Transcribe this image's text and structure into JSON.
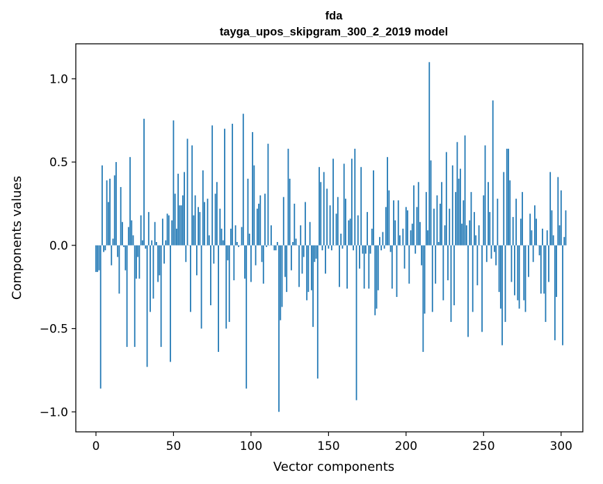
{
  "chart_data": {
    "type": "bar",
    "title": "fda",
    "subtitle": "tayga_upos_skipgram_300_2_2019 model",
    "xlabel": "Vector components",
    "ylabel": "Components values",
    "xlim": [
      -13,
      314
    ],
    "ylim": [
      -1.12,
      1.21
    ],
    "x_ticks": [
      {
        "value": 0,
        "label": "0"
      },
      {
        "value": 50,
        "label": "50"
      },
      {
        "value": 100,
        "label": "100"
      },
      {
        "value": 150,
        "label": "150"
      },
      {
        "value": 200,
        "label": "200"
      },
      {
        "value": 250,
        "label": "250"
      },
      {
        "value": 300,
        "label": "300"
      }
    ],
    "y_ticks": [
      {
        "value": -1.0,
        "label": "−1.0"
      },
      {
        "value": -0.5,
        "label": "−0.5"
      },
      {
        "value": 0.0,
        "label": "0.0"
      },
      {
        "value": 0.5,
        "label": "0.5"
      },
      {
        "value": 1.0,
        "label": "1.0"
      }
    ],
    "bar_color": "#1f77b4",
    "grid": false,
    "values": [
      -0.16,
      -0.16,
      -0.15,
      -0.86,
      0.48,
      -0.04,
      -0.03,
      0.39,
      0.26,
      0.4,
      -0.12,
      0.04,
      0.42,
      0.5,
      -0.07,
      -0.29,
      0.35,
      0.14,
      -0.01,
      -0.15,
      -0.61,
      0.11,
      0.53,
      0.15,
      0.06,
      -0.61,
      -0.2,
      -0.07,
      -0.2,
      0.18,
      0.03,
      0.76,
      -0.02,
      -0.73,
      0.2,
      -0.4,
      0.03,
      -0.32,
      0.14,
      0.02,
      -0.22,
      -0.18,
      -0.61,
      0.16,
      -0.11,
      0.03,
      0.19,
      0.18,
      -0.7,
      0.15,
      0.75,
      0.31,
      0.1,
      0.43,
      0.24,
      0.24,
      0.3,
      0.44,
      -0.1,
      0.64,
      0.0,
      -0.4,
      0.6,
      0.18,
      0.3,
      -0.18,
      0.23,
      0.2,
      -0.5,
      0.45,
      0.26,
      0.0,
      0.28,
      0.06,
      -0.36,
      0.72,
      -0.11,
      0.31,
      0.38,
      -0.64,
      0.22,
      0.1,
      0.03,
      0.7,
      -0.5,
      -0.09,
      -0.46,
      0.1,
      0.73,
      -0.21,
      0.12,
      0.02,
      -0.01,
      0.0,
      0.11,
      0.79,
      -0.2,
      -0.86,
      0.4,
      0.07,
      -0.22,
      0.68,
      0.48,
      -0.12,
      0.22,
      0.25,
      0.3,
      -0.1,
      -0.23,
      0.31,
      -0.01,
      0.61,
      0.0,
      0.12,
      0.0,
      -0.03,
      -0.03,
      0.02,
      -1.0,
      -0.45,
      -0.37,
      0.29,
      -0.19,
      -0.28,
      0.58,
      0.4,
      -0.15,
      0.02,
      0.25,
      0.04,
      0.0,
      -0.25,
      0.12,
      -0.17,
      -0.07,
      0.26,
      -0.33,
      -0.28,
      0.14,
      -0.27,
      -0.49,
      -0.1,
      -0.08,
      -0.8,
      0.47,
      0.38,
      -0.03,
      0.44,
      -0.17,
      0.34,
      -0.02,
      0.24,
      -0.03,
      0.52,
      0.0,
      0.19,
      0.29,
      -0.25,
      0.07,
      -0.02,
      0.49,
      0.28,
      -0.26,
      0.15,
      0.16,
      0.52,
      -0.03,
      0.58,
      -0.93,
      0.18,
      -0.14,
      0.47,
      -0.05,
      -0.26,
      -0.05,
      0.2,
      -0.26,
      -0.05,
      0.1,
      0.45,
      -0.42,
      -0.38,
      -0.27,
      0.05,
      -0.03,
      0.08,
      -0.02,
      0.23,
      0.53,
      0.33,
      -0.04,
      -0.26,
      0.27,
      0.15,
      -0.31,
      0.27,
      0.06,
      0.0,
      0.1,
      -0.14,
      0.23,
      0.21,
      -0.23,
      0.09,
      0.13,
      0.36,
      -0.05,
      0.23,
      0.38,
      0.14,
      -0.12,
      -0.64,
      -0.41,
      0.32,
      0.09,
      1.1,
      0.51,
      -0.4,
      0.22,
      -0.23,
      0.3,
      0.02,
      0.25,
      0.38,
      -0.33,
      0.12,
      0.56,
      -0.21,
      0.22,
      -0.46,
      0.48,
      -0.36,
      0.32,
      0.62,
      0.4,
      0.46,
      0.13,
      0.27,
      0.66,
      0.12,
      -0.55,
      0.15,
      0.32,
      -0.4,
      0.2,
      0.06,
      -0.24,
      0.12,
      0.0,
      -0.52,
      0.3,
      0.6,
      -0.1,
      0.38,
      0.2,
      -0.08,
      0.87,
      -0.04,
      -0.12,
      0.28,
      -0.28,
      -0.38,
      -0.6,
      0.44,
      -0.46,
      0.58,
      0.58,
      0.39,
      -0.22,
      0.17,
      -0.3,
      0.28,
      -0.33,
      -0.38,
      0.16,
      0.32,
      -0.33,
      -0.4,
      0.0,
      -0.19,
      0.19,
      0.09,
      -0.1,
      0.24,
      0.16,
      0.0,
      -0.06,
      -0.29,
      0.1,
      -0.29,
      -0.46,
      0.09,
      -0.22,
      0.44,
      0.21,
      0.06,
      -0.57,
      -0.31,
      0.41,
      0.12,
      0.33,
      -0.6,
      0.05,
      0.21
    ]
  }
}
